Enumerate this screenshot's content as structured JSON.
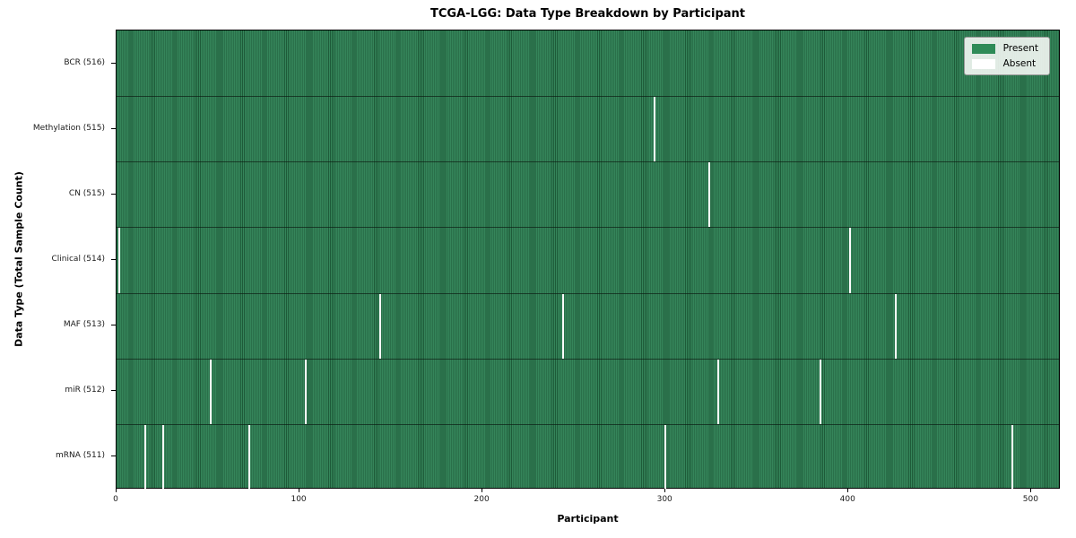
{
  "chart_data": {
    "type": "heatmap",
    "title": "TCGA-LGG: Data Type Breakdown by Participant",
    "xlabel": "Participant",
    "ylabel": "Data Type (Total Sample Count)",
    "x_range": [
      0,
      516
    ],
    "x_ticks": [
      0,
      100,
      200,
      300,
      400,
      500
    ],
    "n_participants": 516,
    "grid": false,
    "legend_position": "upper right",
    "legend": {
      "present_label": "Present",
      "absent_label": "Absent"
    },
    "colors": {
      "present": "#2e8b57",
      "present_edge": "#1e5b39",
      "absent": "#ffffff",
      "row_separator": "#0a190f",
      "legend_bg": "#f4f7f4",
      "legend_border": "#9a9a9a"
    },
    "rows": [
      {
        "label": "BCR (516)",
        "data_type": "BCR",
        "present_count": 516,
        "absent_participants": []
      },
      {
        "label": "Methylation (515)",
        "data_type": "Methylation",
        "present_count": 515,
        "absent_participants": [
          294
        ]
      },
      {
        "label": "CN (515)",
        "data_type": "CN",
        "present_count": 515,
        "absent_participants": [
          324
        ]
      },
      {
        "label": "Clinical (514)",
        "data_type": "Clinical",
        "present_count": 514,
        "absent_participants": [
          1,
          401
        ]
      },
      {
        "label": "MAF (513)",
        "data_type": "MAF",
        "present_count": 513,
        "absent_participants": [
          144,
          244,
          426
        ]
      },
      {
        "label": "miR (512)",
        "data_type": "miR",
        "present_count": 512,
        "absent_participants": [
          51,
          103,
          329,
          385
        ]
      },
      {
        "label": "mRNA (511)",
        "data_type": "mRNA",
        "present_count": 511,
        "absent_participants": [
          15,
          25,
          72,
          300,
          490
        ]
      }
    ]
  }
}
